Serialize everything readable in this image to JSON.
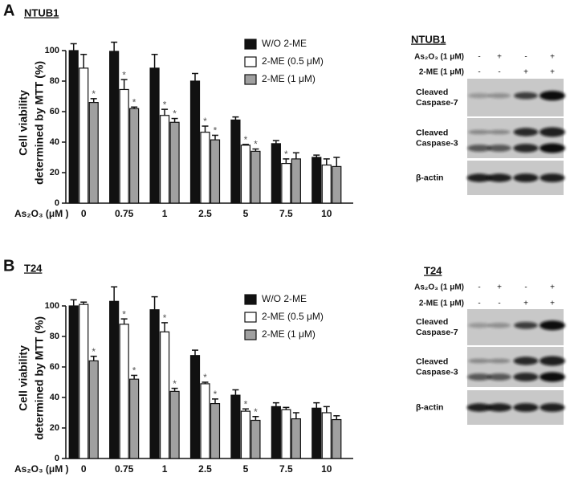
{
  "chart_data": [
    {
      "type": "bar",
      "panel_label": "A",
      "title": "NTUB1",
      "y_label": [
        "Cell viability",
        "determined by MTT  (%)"
      ],
      "x_label": "As₂O₃ (μM )",
      "categories": [
        "0",
        "0.75",
        "1",
        "2.5",
        "5",
        "7.5",
        "10"
      ],
      "ylim": [
        0,
        100
      ],
      "yticks": [
        0,
        20,
        40,
        60,
        80,
        100
      ],
      "series": [
        {
          "name": "W/O 2-ME",
          "color": "#111111",
          "values": [
            100,
            99.5,
            88.5,
            80,
            54.5,
            39,
            30
          ],
          "errors": [
            4.5,
            6,
            9,
            5,
            2,
            2,
            1.5
          ],
          "significance": [
            null,
            null,
            null,
            null,
            null,
            null,
            null
          ]
        },
        {
          "name": "2-ME (0.5 μM)",
          "color": "#ffffff",
          "values": [
            88.5,
            74.5,
            57.5,
            46.5,
            38,
            26,
            25
          ],
          "errors": [
            9,
            6.5,
            4,
            4,
            0.5,
            3,
            4
          ],
          "significance": [
            null,
            "*",
            "*",
            "*",
            "*",
            "*",
            null
          ]
        },
        {
          "name": "2-ME (1 μM)",
          "color": "#a0a0a0",
          "values": [
            66,
            62,
            53,
            41.5,
            34,
            29,
            24
          ],
          "errors": [
            2.5,
            1,
            2.5,
            3,
            1.5,
            4,
            6
          ],
          "significance": [
            "*",
            "*",
            "*",
            "*",
            "*",
            null,
            null
          ]
        }
      ]
    },
    {
      "type": "bar",
      "panel_label": "B",
      "title": "T24",
      "y_label": [
        "Cell viability",
        "determined by MTT  (%)"
      ],
      "x_label": "As₂O₃ (μM )",
      "categories": [
        "0",
        "0.75",
        "1",
        "2.5",
        "5",
        "7.5",
        "10"
      ],
      "ylim": [
        0,
        100
      ],
      "yticks": [
        0,
        20,
        40,
        60,
        80,
        100
      ],
      "series": [
        {
          "name": "W/O 2-ME",
          "color": "#111111",
          "values": [
            100,
            103,
            97.5,
            67.5,
            41.5,
            34,
            33
          ],
          "errors": [
            4,
            9.5,
            8.5,
            3.5,
            3.5,
            2.5,
            3.5
          ],
          "significance": [
            null,
            null,
            null,
            null,
            null,
            null,
            null
          ]
        },
        {
          "name": "2-ME (0.5 μM)",
          "color": "#ffffff",
          "values": [
            101,
            88,
            83,
            49,
            31,
            32,
            30
          ],
          "errors": [
            1.5,
            3.5,
            6,
            1,
            1.5,
            1.5,
            4
          ],
          "significance": [
            null,
            "*",
            "*",
            "*",
            "*",
            null,
            null
          ]
        },
        {
          "name": "2-ME (1 μM)",
          "color": "#a0a0a0",
          "values": [
            64,
            52,
            44,
            36,
            25,
            26,
            25.5
          ],
          "errors": [
            3,
            2.5,
            2,
            3,
            2.5,
            4,
            2.5
          ],
          "significance": [
            "*",
            "*",
            "*",
            "*",
            "*",
            null,
            null
          ]
        }
      ]
    }
  ],
  "blots": [
    {
      "title": "NTUB1",
      "treatments": [
        {
          "name": "As₂O₃ (1 μM)",
          "signs": [
            "-",
            "+",
            "-",
            "+"
          ]
        },
        {
          "name": "2-ME (1 μM)",
          "signs": [
            "-",
            "-",
            "+",
            "+"
          ]
        }
      ],
      "bands": [
        [
          "Cleaved",
          "Caspase-7"
        ],
        [
          "Cleaved",
          "Caspase-3"
        ],
        [
          "β-actin"
        ]
      ]
    },
    {
      "title": "T24",
      "treatments": [
        {
          "name": "As₂O₃ (1 μM)",
          "signs": [
            "-",
            "+",
            "-",
            "+"
          ]
        },
        {
          "name": "2-ME (1 μM)",
          "signs": [
            "-",
            "-",
            "+",
            "+"
          ]
        }
      ],
      "bands": [
        [
          "Cleaved",
          "Caspase-7"
        ],
        [
          "Cleaved",
          "Caspase-3"
        ],
        [
          "β-actin"
        ]
      ]
    }
  ]
}
